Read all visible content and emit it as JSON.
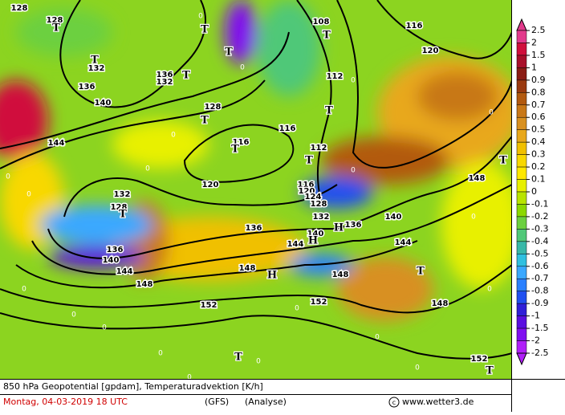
{
  "map": {
    "contour_labels": [
      128,
      128,
      136,
      140,
      144,
      132,
      136,
      132,
      128,
      116,
      120,
      132,
      128,
      136,
      140,
      144,
      148,
      152,
      148,
      136,
      144,
      140,
      136,
      148,
      152,
      116,
      112,
      116,
      120,
      124,
      128,
      132,
      140,
      144,
      148,
      152,
      148,
      108,
      112,
      116,
      120
    ],
    "advection_zero_labels": [
      0,
      0,
      0,
      0,
      0,
      0,
      0,
      0,
      0,
      0,
      0,
      0,
      0,
      0,
      0,
      0,
      0,
      0,
      0,
      0
    ],
    "pressure_centers": [
      "T",
      "T",
      "T",
      "T",
      "T",
      "T",
      "T",
      "T",
      "T",
      "T",
      "T",
      "T",
      "T",
      "T",
      "T",
      "H",
      "H",
      "H"
    ]
  },
  "colorbar": {
    "ticks": [
      2.5,
      2,
      1.5,
      1,
      0.9,
      0.8,
      0.7,
      0.6,
      0.5,
      0.4,
      0.3,
      0.2,
      0.1,
      0,
      -0.1,
      -0.2,
      -0.3,
      -0.4,
      -0.5,
      -0.6,
      -0.7,
      -0.8,
      -0.9,
      -1,
      -1.5,
      -2,
      -2.5
    ],
    "colors": [
      "#e23a8c",
      "#d0103c",
      "#a8102a",
      "#8a1c14",
      "#9a3a10",
      "#b25a10",
      "#c87818",
      "#d89020",
      "#e8a81c",
      "#f0c000",
      "#f8d800",
      "#ffe800",
      "#e8f000",
      "#b8e400",
      "#8cd800",
      "#6cd040",
      "#50c878",
      "#38b8a8",
      "#30c0e0",
      "#3aa8ff",
      "#2a80ff",
      "#2050f0",
      "#3020d8",
      "#5a10e0",
      "#8010f0",
      "#b020f8"
    ]
  },
  "footer": {
    "line1": "850 hPa Geopotential [gpdam], Temperaturadvektion [K/h]",
    "date": "Montag, 04-03-2019  18 UTC",
    "model": "(GFS)",
    "analysis": "(Analyse)",
    "credit": "www.wetter3.de"
  }
}
